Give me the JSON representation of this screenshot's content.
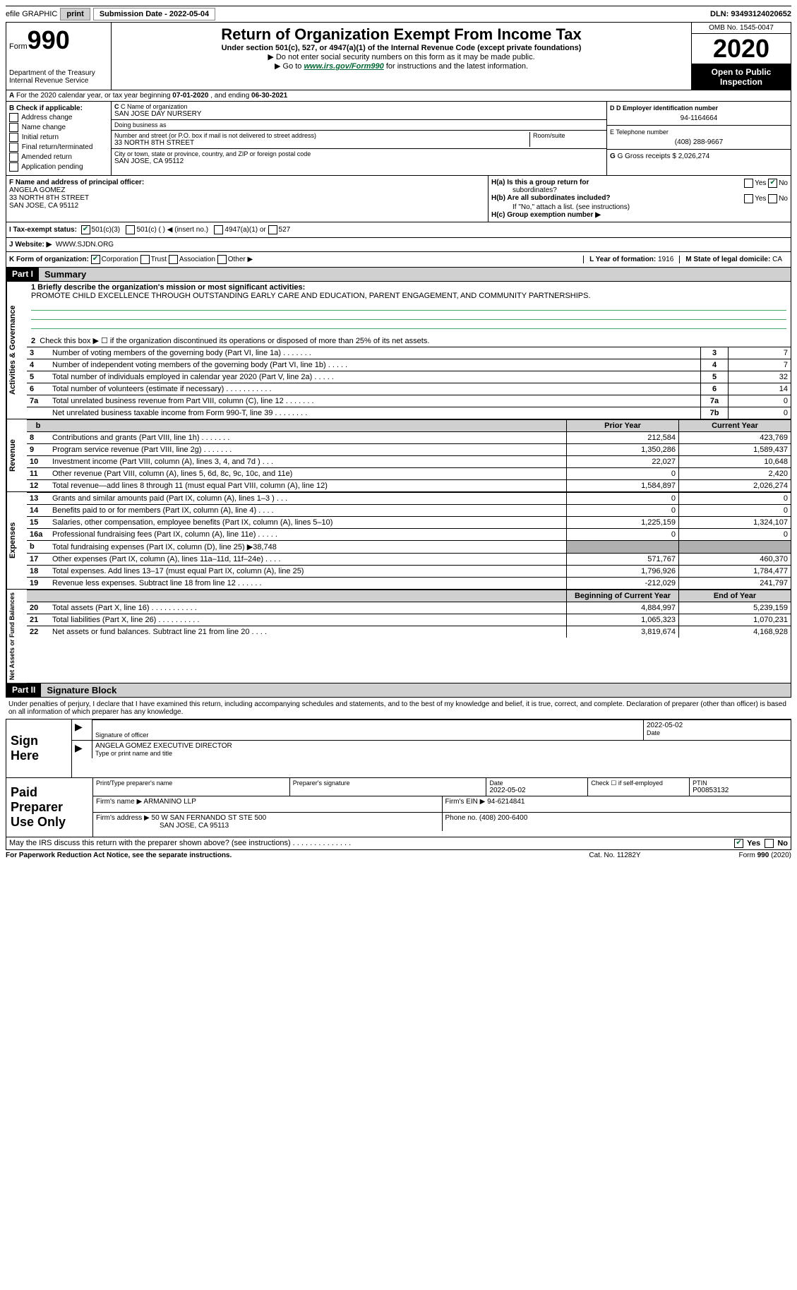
{
  "topbar": {
    "efile_label": "efile GRAPHIC",
    "print_btn": "print",
    "sub_date_label": "Submission Date - ",
    "sub_date": "2022-05-04",
    "dln_label": "DLN: ",
    "dln": "93493124020652"
  },
  "header": {
    "form_label": "Form",
    "form_no": "990",
    "dept": "Department of the Treasury",
    "irs": "Internal Revenue Service",
    "title": "Return of Organization Exempt From Income Tax",
    "subtitle": "Under section 501(c), 527, or 4947(a)(1) of the Internal Revenue Code (except private foundations)",
    "instr1": "▶ Do not enter social security numbers on this form as it may be made public.",
    "instr2_pre": "▶ Go to ",
    "instr2_link": "www.irs.gov/Form990",
    "instr2_post": " for instructions and the latest information.",
    "omb": "OMB No. 1545-0047",
    "year": "2020",
    "open_public1": "Open to Public",
    "open_public2": "Inspection"
  },
  "section_a": {
    "prefix": "A",
    "text": "For the 2020 calendar year, or tax year beginning ",
    "begin": "07-01-2020",
    "mid": " , and ending ",
    "end": "06-30-2021"
  },
  "col_b": {
    "header": "B Check if applicable:",
    "items": [
      "Address change",
      "Name change",
      "Initial return",
      "Final return/terminated",
      "Amended return",
      "Application pending"
    ]
  },
  "col_c": {
    "name_label": "C Name of organization",
    "name": "SAN JOSE DAY NURSERY",
    "dba_label": "Doing business as",
    "dba": "",
    "street_label": "Number and street (or P.O. box if mail is not delivered to street address)",
    "room_label": "Room/suite",
    "street": "33 NORTH 8TH STREET",
    "city_label": "City or town, state or province, country, and ZIP or foreign postal code",
    "city": "SAN JOSE, CA  95112"
  },
  "col_de": {
    "d_label": "D Employer identification number",
    "ein": "94-1164664",
    "e_label": "E Telephone number",
    "phone": "(408) 288-9667",
    "g_label": "G Gross receipts $ ",
    "gross": "2,026,274"
  },
  "row_f": {
    "f_label": "F  Name and address of principal officer:",
    "name": "ANGELA GOMEZ",
    "street": "33 NORTH 8TH STREET",
    "city": "SAN JOSE, CA  95112"
  },
  "row_h": {
    "ha_label": "H(a)  Is this a group return for",
    "ha_label2": "subordinates?",
    "hb_label": "H(b)  Are all subordinates included?",
    "hb_note": "If \"No,\" attach a list. (see instructions)",
    "hc_label": "H(c)  Group exemption number ▶",
    "yes": "Yes",
    "no": "No"
  },
  "tax_status": {
    "i_label": "I   Tax-exempt status:",
    "opt1": "501(c)(3)",
    "opt2": "501(c) (  ) ◀ (insert no.)",
    "opt3": "4947(a)(1) or",
    "opt4": "527"
  },
  "website": {
    "j_label": "J   Website: ▶",
    "url": "WWW.SJDN.ORG"
  },
  "k_row": {
    "k_label": "K Form of organization:",
    "corp": "Corporation",
    "trust": "Trust",
    "assoc": "Association",
    "other": "Other ▶",
    "l_label": "L Year of formation: ",
    "l_val": "1916",
    "m_label": "M State of legal domicile: ",
    "m_val": "CA"
  },
  "part1": {
    "header": "Part I",
    "title": "Summary",
    "line1_label": "1 Briefly describe the organization's mission or most significant activities:",
    "mission": "PROMOTE CHILD EXCELLENCE THROUGH OUTSTANDING EARLY CARE AND EDUCATION, PARENT ENGAGEMENT, AND COMMUNITY PARTNERSHIPS.",
    "line2": "Check this box ▶ ☐  if the organization discontinued its operations or disposed of more than 25% of its net assets."
  },
  "gov_lines": [
    {
      "n": "3",
      "desc": "Number of voting members of the governing body (Part VI, line 1a)   .    .    .    .    .    .    .",
      "box": "3",
      "val": "7"
    },
    {
      "n": "4",
      "desc": "Number of independent voting members of the governing body (Part VI, line 1b)   .    .    .    .    .",
      "box": "4",
      "val": "7"
    },
    {
      "n": "5",
      "desc": "Total number of individuals employed in calendar year 2020 (Part V, line 2a)   .    .    .    .    .",
      "box": "5",
      "val": "32"
    },
    {
      "n": "6",
      "desc": "Total number of volunteers (estimate if necessary)   .    .    .    .    .    .    .    .    .    .    .",
      "box": "6",
      "val": "14"
    },
    {
      "n": "7a",
      "desc": "Total unrelated business revenue from Part VIII, column (C), line 12   .    .    .    .    .    .    .",
      "box": "7a",
      "val": "0"
    },
    {
      "n": "",
      "desc": "Net unrelated business taxable income from Form 990-T, line 39   .    .    .    .    .    .    .    .",
      "box": "7b",
      "val": "0"
    }
  ],
  "rev_hdr": {
    "b": "b",
    "prior": "Prior Year",
    "current": "Current Year"
  },
  "revenue": [
    {
      "n": "8",
      "desc": "Contributions and grants (Part VIII, line 1h)   .    .    .    .    .    .    .",
      "p": "212,584",
      "c": "423,769"
    },
    {
      "n": "9",
      "desc": "Program service revenue (Part VIII, line 2g)   .    .    .    .    .    .    .",
      "p": "1,350,286",
      "c": "1,589,437"
    },
    {
      "n": "10",
      "desc": "Investment income (Part VIII, column (A), lines 3, 4, and 7d )   .    .    .",
      "p": "22,027",
      "c": "10,648"
    },
    {
      "n": "11",
      "desc": "Other revenue (Part VIII, column (A), lines 5, 6d, 8c, 9c, 10c, and 11e)",
      "p": "0",
      "c": "2,420"
    },
    {
      "n": "12",
      "desc": "Total revenue—add lines 8 through 11 (must equal Part VIII, column (A), line 12)",
      "p": "1,584,897",
      "c": "2,026,274"
    }
  ],
  "expenses": [
    {
      "n": "13",
      "desc": "Grants and similar amounts paid (Part IX, column (A), lines 1–3 )   .    .    .",
      "p": "0",
      "c": "0"
    },
    {
      "n": "14",
      "desc": "Benefits paid to or for members (Part IX, column (A), line 4)   .    .    .    .",
      "p": "0",
      "c": "0"
    },
    {
      "n": "15",
      "desc": "Salaries, other compensation, employee benefits (Part IX, column (A), lines 5–10)",
      "p": "1,225,159",
      "c": "1,324,107"
    },
    {
      "n": "16a",
      "desc": "Professional fundraising fees (Part IX, column (A), line 11e)   .    .    .    .    .",
      "p": "0",
      "c": "0"
    },
    {
      "n": "b",
      "desc": "Total fundraising expenses (Part IX, column (D), line 25) ▶38,748",
      "p": "",
      "c": "",
      "shaded": true
    },
    {
      "n": "17",
      "desc": "Other expenses (Part IX, column (A), lines 11a–11d, 11f–24e)   .    .    .    .",
      "p": "571,767",
      "c": "460,370"
    },
    {
      "n": "18",
      "desc": "Total expenses. Add lines 13–17 (must equal Part IX, column (A), line 25)",
      "p": "1,796,926",
      "c": "1,784,477"
    },
    {
      "n": "19",
      "desc": "Revenue less expenses. Subtract line 18 from line 12   .    .    .    .    .    .",
      "p": "-212,029",
      "c": "241,797"
    }
  ],
  "net_hdr": {
    "beg": "Beginning of Current Year",
    "end": "End of Year"
  },
  "netassets": [
    {
      "n": "20",
      "desc": "Total assets (Part X, line 16)   .    .    .    .    .    .    .    .    .    .    .",
      "p": "4,884,997",
      "c": "5,239,159"
    },
    {
      "n": "21",
      "desc": "Total liabilities (Part X, line 26)   .    .    .    .    .    .    .    .    .    .",
      "p": "1,065,323",
      "c": "1,070,231"
    },
    {
      "n": "22",
      "desc": "Net assets or fund balances. Subtract line 21 from line 20   .    .    .    .",
      "p": "3,819,674",
      "c": "4,168,928"
    }
  ],
  "vtabs": {
    "gov": "Activities & Governance",
    "rev": "Revenue",
    "exp": "Expenses",
    "net": "Net Assets or Fund Balances"
  },
  "part2": {
    "header": "Part II",
    "title": "Signature Block",
    "declare": "Under penalties of perjury, I declare that I have examined this return, including accompanying schedules and statements, and to the best of my knowledge and belief, it is true, correct, and complete. Declaration of preparer (other than officer) is based on all information of which preparer has any knowledge."
  },
  "sign": {
    "label": "Sign Here",
    "sig_of_officer": "Signature of officer",
    "date_label": "Date",
    "date": "2022-05-02",
    "typed": "ANGELA GOMEZ  EXECUTIVE DIRECTOR",
    "typed_label": "Type or print name and title"
  },
  "prep": {
    "label": "Paid Preparer Use Only",
    "print_name_label": "Print/Type preparer's name",
    "print_name": "",
    "prep_sig_label": "Preparer's signature",
    "date_label": "Date",
    "date": "2022-05-02",
    "check_label": "Check ☐ if self-employed",
    "ptin_label": "PTIN",
    "ptin": "P00853132",
    "firm_name_label": "Firm's name    ▶",
    "firm_name": "ARMANINO LLP",
    "firm_ein_label": "Firm's EIN ▶",
    "firm_ein": "94-6214841",
    "firm_addr_label": "Firm's address ▶",
    "firm_addr1": "50 W SAN FERNANDO ST STE 500",
    "firm_addr2": "SAN JOSE, CA  95113",
    "phone_label": "Phone no. ",
    "phone": "(408) 200-6400"
  },
  "discuss": {
    "text": "May the IRS discuss this return with the preparer shown above? (see instructions)   .    .    .    .    .    .    .    .    .    .    .    .    .    .",
    "yes": "Yes",
    "no": "No"
  },
  "footer": {
    "left": "For Paperwork Reduction Act Notice, see the separate instructions.",
    "mid": "Cat. No. 11282Y",
    "right": "Form 990 (2020)"
  }
}
